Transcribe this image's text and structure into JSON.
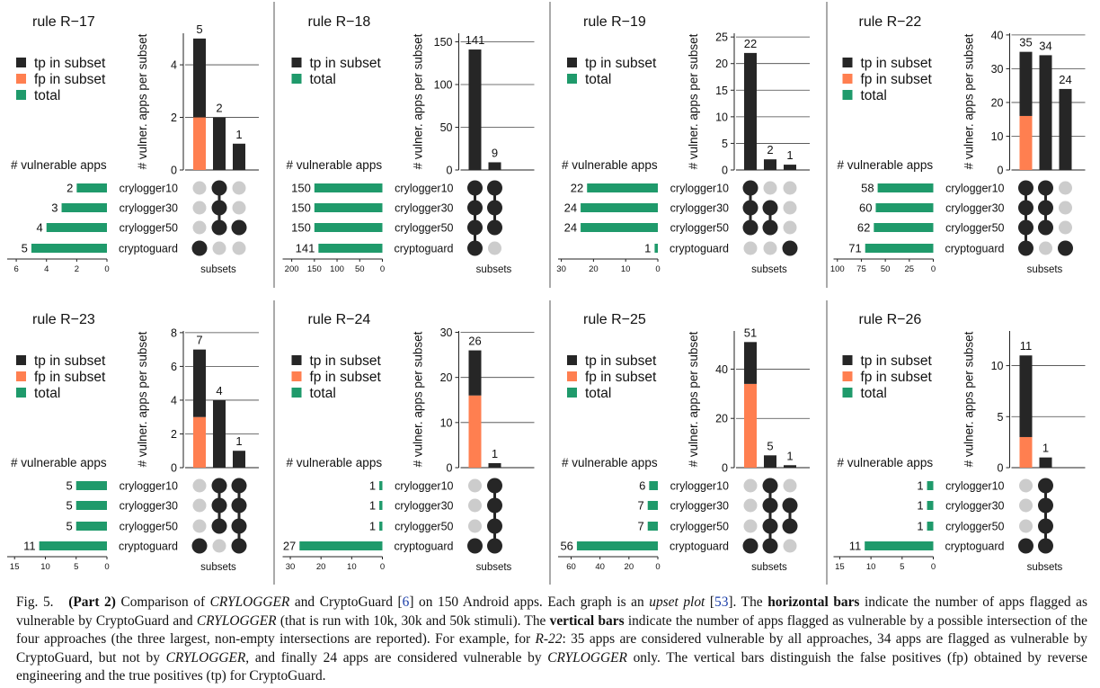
{
  "colors": {
    "tp": "#262626",
    "fp": "#ff7f50",
    "total": "#1f9a6b",
    "dot_on": "#262626",
    "dot_off": "#cccccc",
    "axis": "#222222",
    "grid": "#444444",
    "divider": "#555555"
  },
  "legend_labels": {
    "tp": "tp in subset",
    "fp": "fp in subset",
    "total": "total"
  },
  "labels": {
    "ylabel": "# vulner. apps per subset",
    "hlabel": "# vulnerable apps",
    "subsets": "subsets"
  },
  "set_names": [
    "crylogger10",
    "crylogger30",
    "crylogger50",
    "cryptoguard"
  ],
  "chart_data": [
    {
      "type": "upset",
      "title": "rule R−17",
      "legend": [
        "tp",
        "fp",
        "total"
      ],
      "totals": [
        2,
        3,
        4,
        5
      ],
      "hticks": [
        6,
        4,
        2,
        0
      ],
      "hmax": 6.6,
      "vticks": [
        0,
        2,
        4
      ],
      "vmax": 5.2,
      "bars": [
        {
          "tp": 3,
          "fp": 2,
          "label": "5",
          "sets": [
            3
          ]
        },
        {
          "tp": 2,
          "fp": 0,
          "label": "2",
          "sets": [
            0,
            1,
            2
          ]
        },
        {
          "tp": 1,
          "fp": 0,
          "label": "1",
          "sets": [
            2
          ]
        }
      ]
    },
    {
      "type": "upset",
      "title": "rule R−18",
      "legend": [
        "tp",
        "total"
      ],
      "totals": [
        150,
        150,
        150,
        141
      ],
      "hticks": [
        200,
        150,
        100,
        50,
        0
      ],
      "hmax": 220,
      "vticks": [
        0,
        50,
        100,
        150
      ],
      "vmax": 160,
      "bars": [
        {
          "tp": 141,
          "fp": 0,
          "label": "141",
          "sets": [
            0,
            1,
            2,
            3
          ]
        },
        {
          "tp": 9,
          "fp": 0,
          "label": "9",
          "sets": [
            0,
            1,
            2
          ]
        }
      ]
    },
    {
      "type": "upset",
      "title": "rule R−19",
      "legend": [
        "tp",
        "total"
      ],
      "totals": [
        22,
        24,
        24,
        1
      ],
      "hticks": [
        30,
        20,
        10,
        0
      ],
      "hmax": 31,
      "vticks": [
        0,
        5,
        10,
        15,
        20,
        25
      ],
      "vmax": 25.7,
      "bars": [
        {
          "tp": 22,
          "fp": 0,
          "label": "22",
          "sets": [
            0,
            1,
            2
          ]
        },
        {
          "tp": 2,
          "fp": 0,
          "label": "2",
          "sets": [
            1,
            2
          ]
        },
        {
          "tp": 1,
          "fp": 0,
          "label": "1",
          "sets": [
            3
          ]
        }
      ]
    },
    {
      "type": "upset",
      "title": "rule R−22",
      "legend": [
        "tp",
        "fp",
        "total"
      ],
      "totals": [
        58,
        60,
        62,
        71
      ],
      "hticks": [
        100,
        75,
        50,
        25,
        0
      ],
      "hmax": 104,
      "vticks": [
        0,
        10,
        20,
        30,
        40
      ],
      "vmax": 40.5,
      "bars": [
        {
          "tp": 19,
          "fp": 16,
          "label": "35",
          "sets": [
            0,
            1,
            2,
            3
          ]
        },
        {
          "tp": 34,
          "fp": 0,
          "label": "34",
          "sets": [
            0,
            1,
            2
          ]
        },
        {
          "tp": 24,
          "fp": 0,
          "label": "24",
          "sets": [
            3
          ]
        }
      ]
    },
    {
      "type": "upset",
      "title": "rule R−23",
      "legend": [
        "tp",
        "fp",
        "total"
      ],
      "totals": [
        5,
        5,
        5,
        11
      ],
      "hticks": [
        15,
        10,
        5,
        0
      ],
      "hmax": 16.2,
      "vticks": [
        0,
        2,
        4,
        6,
        8
      ],
      "vmax": 8.1,
      "bars": [
        {
          "tp": 4,
          "fp": 3,
          "label": "7",
          "sets": [
            3
          ]
        },
        {
          "tp": 4,
          "fp": 0,
          "label": "4",
          "sets": [
            0,
            1,
            2
          ]
        },
        {
          "tp": 1,
          "fp": 0,
          "label": "1",
          "sets": [
            0,
            1,
            2,
            3
          ]
        }
      ]
    },
    {
      "type": "upset",
      "title": "rule R−24",
      "legend": [
        "tp",
        "fp",
        "total"
      ],
      "totals": [
        1,
        1,
        1,
        27
      ],
      "hticks": [
        30,
        20,
        10,
        0
      ],
      "hmax": 32.5,
      "vticks": [
        0,
        10,
        20,
        30
      ],
      "vmax": 30.3,
      "bars": [
        {
          "tp": 10,
          "fp": 16,
          "label": "26",
          "sets": [
            3
          ]
        },
        {
          "tp": 1,
          "fp": 0,
          "label": "1",
          "sets": [
            0,
            1,
            2,
            3
          ]
        }
      ]
    },
    {
      "type": "upset",
      "title": "rule R−25",
      "legend": [
        "tp",
        "fp",
        "total"
      ],
      "totals": [
        6,
        7,
        7,
        56
      ],
      "hticks": [
        60,
        40,
        20,
        0
      ],
      "hmax": 69,
      "vticks": [
        0,
        20,
        40
      ],
      "vmax": 55.5,
      "bars": [
        {
          "tp": 17,
          "fp": 34,
          "label": "51",
          "sets": [
            3
          ]
        },
        {
          "tp": 5,
          "fp": 0,
          "label": "5",
          "sets": [
            0,
            1,
            2,
            3
          ]
        },
        {
          "tp": 1,
          "fp": 0,
          "label": "1",
          "sets": [
            1,
            2
          ]
        }
      ]
    },
    {
      "type": "upset",
      "title": "rule R−26",
      "legend": [
        "tp",
        "fp",
        "total"
      ],
      "totals": [
        1,
        1,
        1,
        11
      ],
      "hticks": [
        15,
        10,
        5,
        0
      ],
      "hmax": 16,
      "vticks": [
        0,
        5,
        10
      ],
      "vmax": 13.4,
      "bars": [
        {
          "tp": 8,
          "fp": 3,
          "label": "11",
          "sets": [
            3
          ]
        },
        {
          "tp": 1,
          "fp": 0,
          "label": "1",
          "sets": [
            0,
            1,
            2,
            3
          ]
        }
      ]
    }
  ],
  "caption": {
    "fig": "Fig. 5.",
    "part": "(Part 2)",
    "t1": " Comparison of ",
    "crylogger": "CRYLOGGER",
    "t2": " and CryptoGuard [",
    "ref6": "6",
    "t3": "] on 150 Android apps. Each graph is an ",
    "upset": "upset plot",
    "t4": " [",
    "ref53": "53",
    "t5": "]. The ",
    "hbars": "horizontal bars",
    "t6": " indicate the number of apps flagged as vulnerable by CryptoGuard and ",
    "t7": " (that is run with 10k, 30k and 50k stimuli). The ",
    "vbars": "vertical bars",
    "t8": " indicate the number of apps flagged as vulnerable by a possible intersection of the four approaches (the three largest, non-empty intersections are reported). For example, for ",
    "r22": "R-22",
    "t9": ": 35 apps are considered vulnerable by all approaches, 34 apps are flagged as vulnerable by CryptoGuard, but not by ",
    "t10": ", and finally 24 apps are considered vulnerable by ",
    "t11": " only. The vertical bars distinguish the false positives (fp) obtained by reverse engineering and the true positives (tp) for CryptoGuard."
  }
}
